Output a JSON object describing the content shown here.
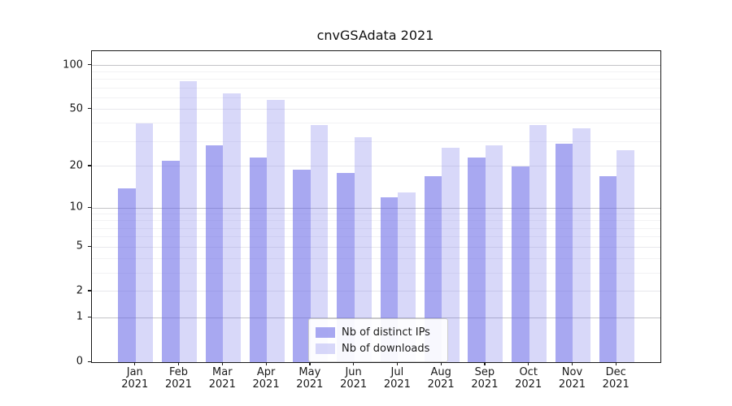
{
  "title": "cnvGSAdata 2021",
  "chart_data": {
    "type": "bar",
    "title": "cnvGSAdata 2021",
    "xlabel": "",
    "ylabel": "",
    "scale": "symlog, position proportional to ln(1+value)",
    "ylim": [
      0,
      125
    ],
    "yticks": [
      100,
      50,
      20,
      10,
      5,
      2,
      1,
      0
    ],
    "gridlines": {
      "powers": [
        1,
        10,
        100
      ],
      "majors": [
        2,
        5,
        20,
        50
      ],
      "minors": [
        3,
        4,
        6,
        7,
        8,
        9,
        30,
        40,
        60,
        70,
        80,
        90
      ]
    },
    "grid": true,
    "legend_position": "lower center",
    "categories": [
      "Jan 2021",
      "Feb 2021",
      "Mar 2021",
      "Apr 2021",
      "May 2021",
      "Jun 2021",
      "Jul 2021",
      "Aug 2021",
      "Sep 2021",
      "Oct 2021",
      "Nov 2021",
      "Dec 2021"
    ],
    "series": [
      {
        "name": "Nb of distinct IPs",
        "color": "rgba(100,100,230,0.56)",
        "values": [
          14,
          22,
          28,
          23,
          19,
          18,
          12,
          17,
          23,
          20,
          29,
          17
        ]
      },
      {
        "name": "Nb of downloads",
        "color": "rgba(100,100,230,0.25)",
        "values": [
          40,
          78,
          64,
          58,
          39,
          32,
          13,
          27,
          28,
          39,
          37,
          26
        ]
      }
    ]
  },
  "colors": {
    "grid_power_of_ten": "#c3c3c7",
    "grid_major": "#e8e8ec",
    "grid_minor": "#f2f2f4",
    "axis": "#1a1a1a",
    "text": "#1a1a1a"
  }
}
